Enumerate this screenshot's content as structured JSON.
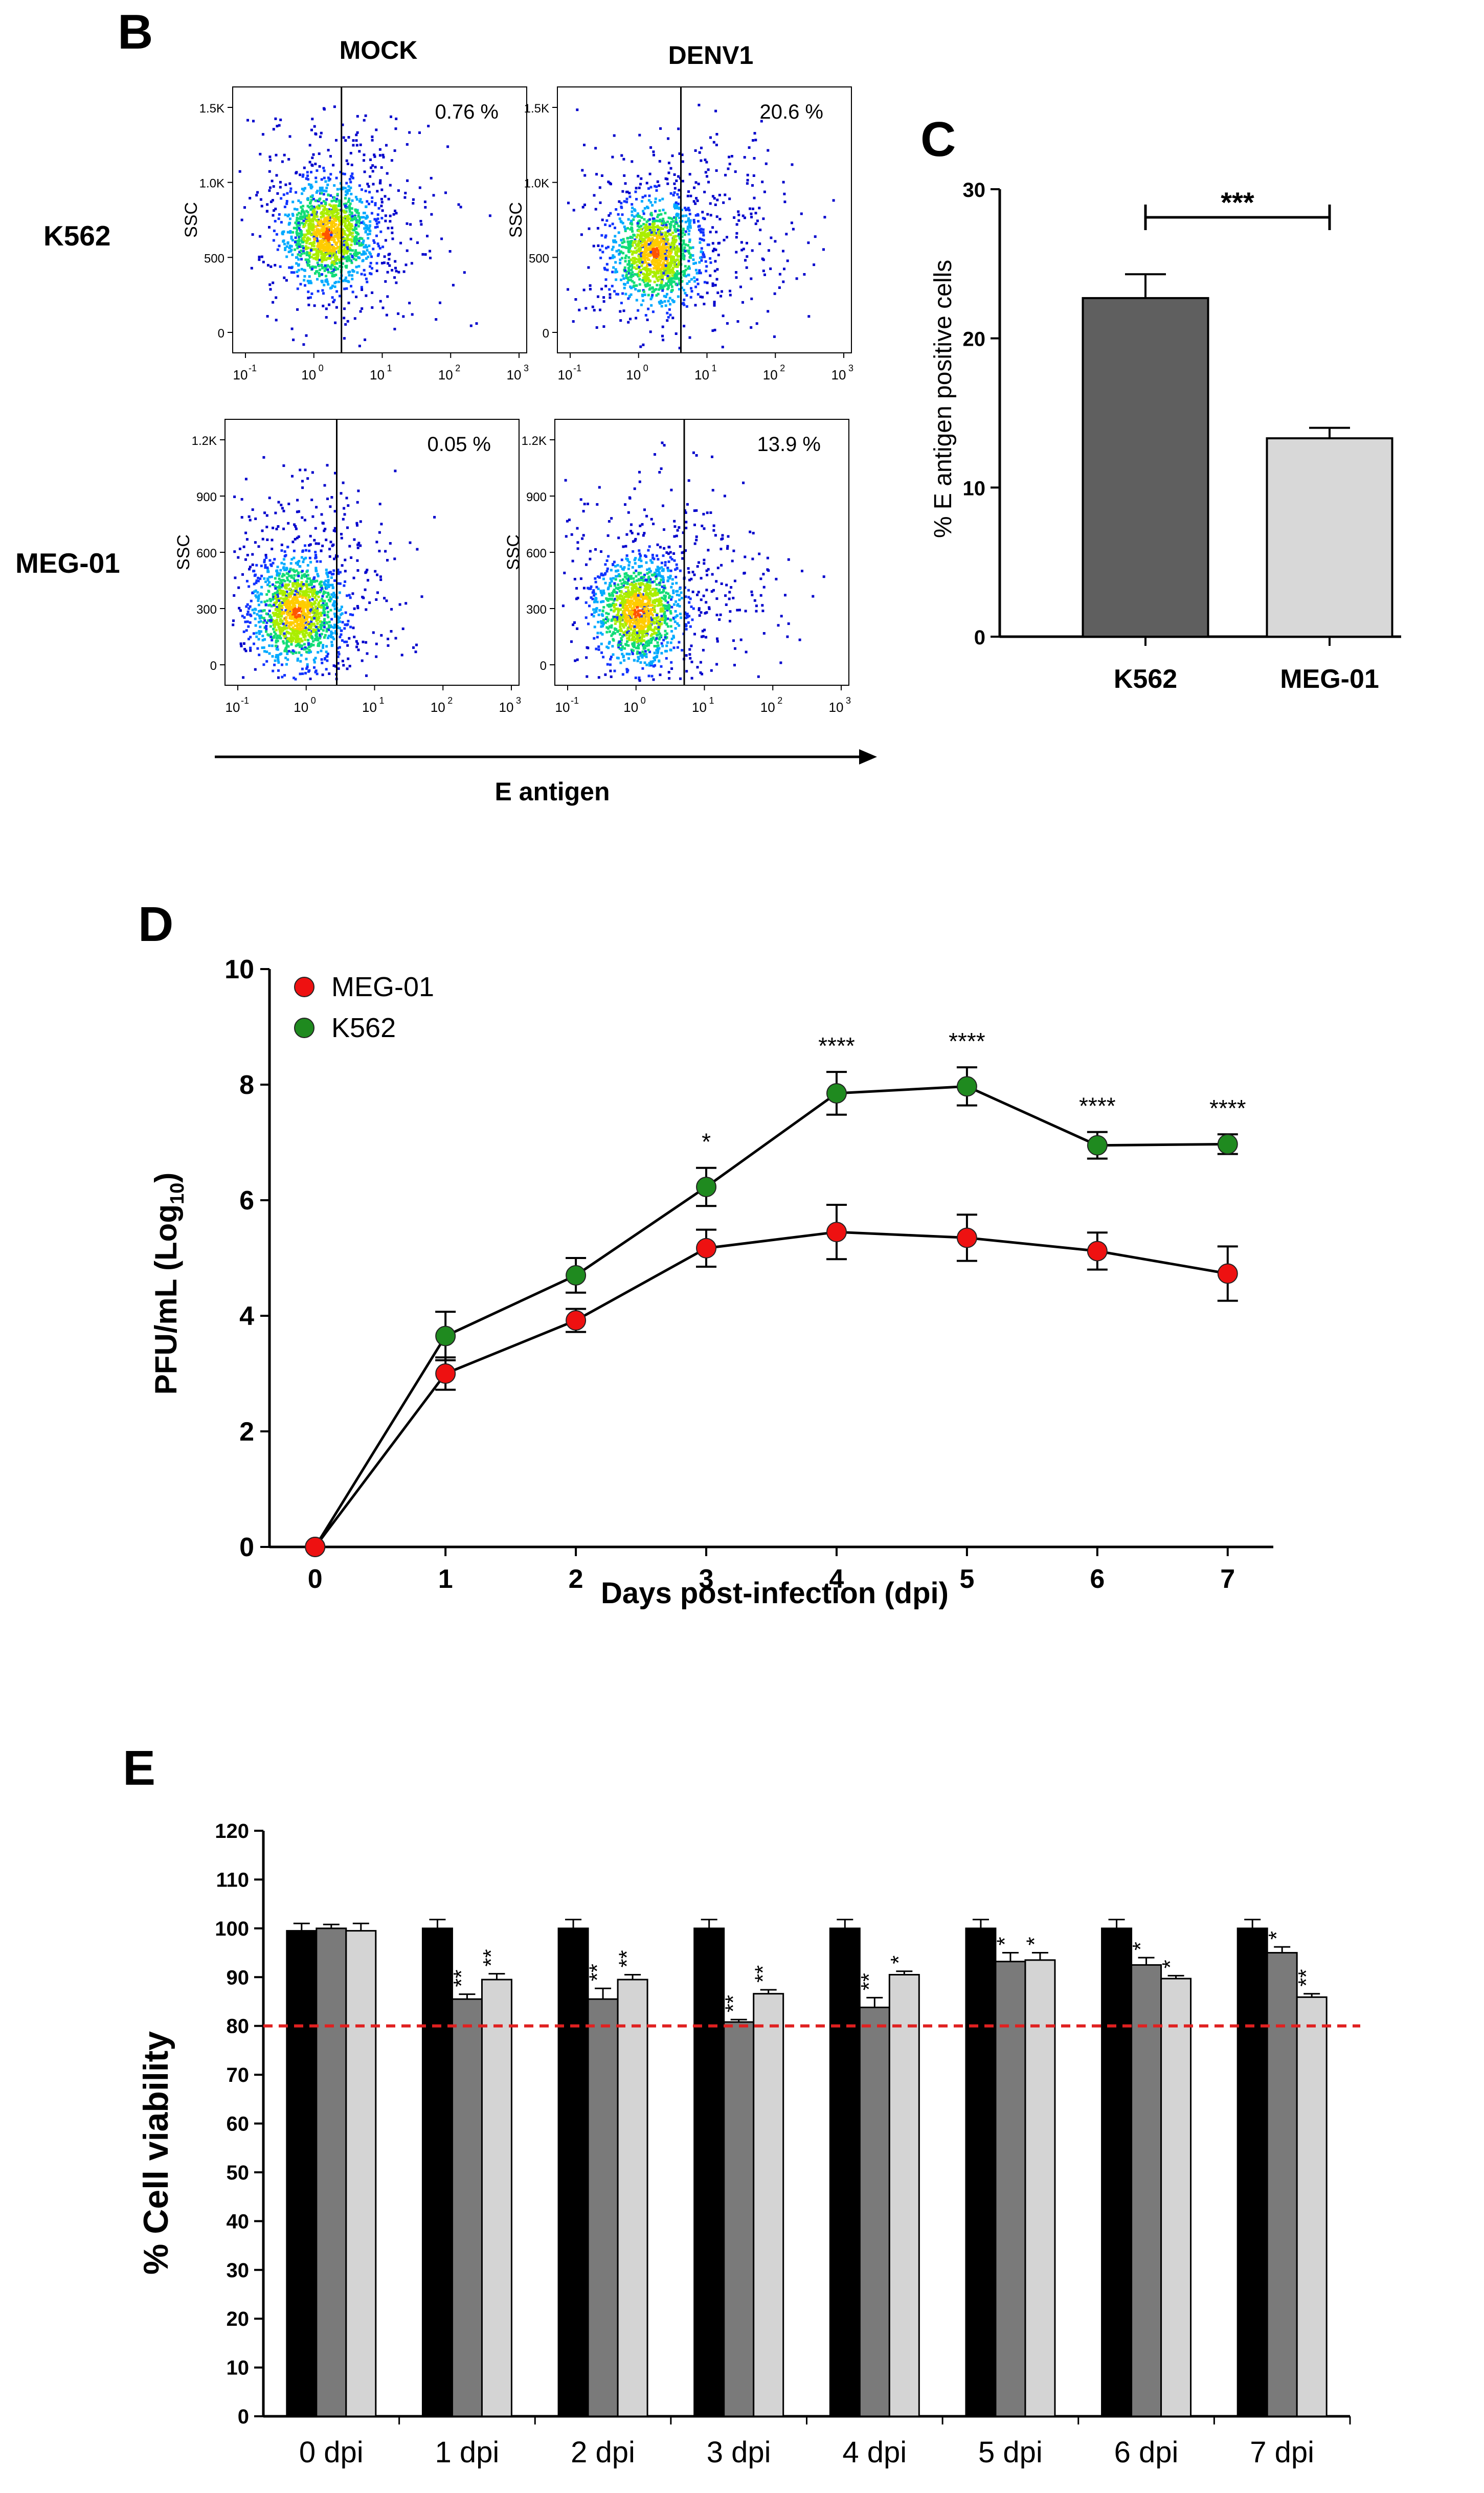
{
  "panelB": {
    "letter": "B",
    "col_labels": [
      "MOCK",
      "DENV1"
    ],
    "row_labels": [
      "K562",
      "MEG-01"
    ],
    "y_label": "SSC",
    "x_axis_label": "E antigen",
    "plots": [
      {
        "percent": "0.76 %",
        "y_ticks": [
          "1.5K",
          "1.0K",
          "500",
          "0"
        ],
        "x_ticks": [
          "10",
          "10",
          "10",
          "10",
          "10"
        ],
        "exps": [
          "-1",
          "0",
          "1",
          "2",
          "3"
        ],
        "gate": 0.37,
        "cluster": [
          0.32,
          0.55
        ],
        "spread": 0.32
      },
      {
        "percent": "20.6 %",
        "y_ticks": [
          "1.5K",
          "1.0K",
          "500",
          "0"
        ],
        "x_ticks": [
          "10",
          "10",
          "10",
          "10",
          "10"
        ],
        "exps": [
          "-1",
          "0",
          "1",
          "2",
          "3"
        ],
        "gate": 0.42,
        "cluster": [
          0.33,
          0.62
        ],
        "spread": 0.62
      },
      {
        "percent": "0.05 %",
        "y_ticks": [
          "1.2K",
          "900",
          "600",
          "300",
          "0"
        ],
        "x_ticks": [
          "10",
          "10",
          "10",
          "10",
          "10"
        ],
        "exps": [
          "-1",
          "0",
          "1",
          "2",
          "3"
        ],
        "gate": 0.38,
        "cluster": [
          0.24,
          0.72
        ],
        "spread": 0.25
      },
      {
        "percent": "13.9 %",
        "y_ticks": [
          "1.2K",
          "900",
          "600",
          "300",
          "0"
        ],
        "x_ticks": [
          "10",
          "10",
          "10",
          "10",
          "10"
        ],
        "exps": [
          "-1",
          "0",
          "1",
          "2",
          "3"
        ],
        "gate": 0.44,
        "cluster": [
          0.28,
          0.72
        ],
        "spread": 0.55
      }
    ]
  },
  "chart_data": [
    {
      "id": "C",
      "type": "bar",
      "letter": "C",
      "categories": [
        "K562",
        "MEG-01"
      ],
      "values": [
        22.7,
        13.3
      ],
      "errors": [
        1.6,
        0.7
      ],
      "colors": [
        "#5f5f5f",
        "#d8d8d8"
      ],
      "ylabel": "% E antigen positive cells",
      "ylim": [
        0,
        30
      ],
      "yticks": [
        0,
        10,
        20,
        30
      ],
      "significance": "***"
    },
    {
      "id": "D",
      "type": "line",
      "letter": "D",
      "xlabel": "Days post-infection (dpi)",
      "ylabel_main": "PFU/mL (Log",
      "ylabel_sub": "10",
      "ylabel_close": ")",
      "x": [
        0,
        1,
        2,
        3,
        4,
        5,
        6,
        7
      ],
      "xlim": [
        -0.35,
        7.35
      ],
      "ylim": [
        0,
        10
      ],
      "yticks": [
        0,
        2,
        4,
        6,
        8,
        10
      ],
      "series": [
        {
          "name": "MEG-01",
          "color": "#ee1111",
          "values": [
            0,
            3.0,
            3.92,
            5.17,
            5.45,
            5.35,
            5.12,
            4.73
          ],
          "errors": [
            0,
            0.28,
            0.2,
            0.32,
            0.47,
            0.4,
            0.32,
            0.47
          ]
        },
        {
          "name": "K562",
          "color": "#1f8a1f",
          "values": [
            0,
            3.65,
            4.7,
            6.23,
            7.85,
            7.97,
            6.95,
            6.97
          ],
          "errors": [
            0,
            0.42,
            0.3,
            0.33,
            0.37,
            0.33,
            0.23,
            0.17
          ]
        }
      ],
      "annotations": [
        {
          "x": 3,
          "text": "*"
        },
        {
          "x": 4,
          "text": "****"
        },
        {
          "x": 5,
          "text": "****"
        },
        {
          "x": 6,
          "text": "****"
        },
        {
          "x": 7,
          "text": "****"
        }
      ]
    },
    {
      "id": "E",
      "type": "bar",
      "letter": "E",
      "ylabel": "% Cell viability",
      "categories": [
        "0 dpi",
        "1 dpi",
        "2 dpi",
        "3 dpi",
        "4 dpi",
        "5 dpi",
        "6 dpi",
        "7 dpi"
      ],
      "ylim": [
        0,
        120
      ],
      "yticks": [
        0,
        10,
        20,
        30,
        40,
        50,
        60,
        70,
        80,
        90,
        100,
        110,
        120
      ],
      "threshold": 80,
      "threshold_color": "#e02020",
      "series": [
        {
          "color": "#000000",
          "values": [
            99.5,
            100,
            100,
            100,
            100,
            100,
            100,
            100
          ],
          "errors": [
            1.5,
            1.8,
            1.8,
            1.8,
            1.8,
            1.8,
            1.8,
            1.8
          ]
        },
        {
          "color": "#7a7a7a",
          "values": [
            100,
            85.5,
            85.5,
            80.8,
            83.8,
            93.2,
            92.5,
            95.0
          ],
          "errors": [
            0.8,
            1.0,
            2.2,
            0.5,
            2.0,
            1.8,
            1.5,
            1.2
          ]
        },
        {
          "color": "#d4d4d4",
          "values": [
            99.5,
            89.5,
            89.5,
            86.6,
            90.5,
            93.5,
            89.7,
            85.9
          ],
          "errors": [
            1.5,
            1.2,
            1.0,
            0.8,
            0.7,
            1.5,
            0.6,
            0.7
          ]
        }
      ],
      "significance": [
        [
          "",
          "",
          ""
        ],
        [
          "",
          "**",
          "**"
        ],
        [
          "",
          "**",
          "**"
        ],
        [
          "",
          "**",
          "**"
        ],
        [
          "",
          "**",
          "*"
        ],
        [
          "",
          "*",
          "*"
        ],
        [
          "",
          "*",
          "*"
        ],
        [
          "",
          "*",
          "**"
        ]
      ]
    }
  ]
}
